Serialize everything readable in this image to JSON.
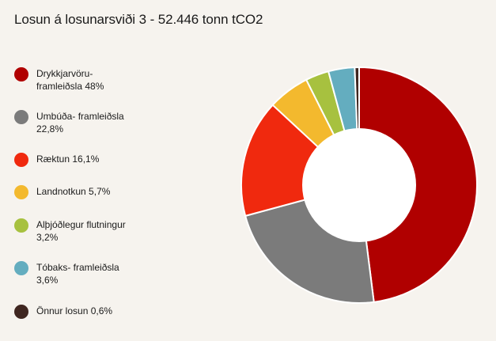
{
  "title": "Losun á losunarsviði 3 - 52.446 tonn tCO2",
  "chart_data": {
    "type": "pie",
    "title": "Losun á losunarsviði 3 - 52.446 tonn tCO2",
    "donut": true,
    "legend_position": "left",
    "slices": [
      {
        "label": "Drykkjarvöru-\nframleiðsla 48%",
        "value": 48.0,
        "color": "#b00000"
      },
      {
        "label": "Umbúða- framleiðsla\n22,8%",
        "value": 22.8,
        "color": "#7b7b7b"
      },
      {
        "label": "Ræktun 16,1%",
        "value": 16.1,
        "color": "#f0290e"
      },
      {
        "label": "Landnotkun 5,7%",
        "value": 5.7,
        "color": "#f3b92e"
      },
      {
        "label": "Alþjóðlegur flutningur\n3,2%",
        "value": 3.2,
        "color": "#a7c13f"
      },
      {
        "label": "Tóbaks- framleiðsla\n3,6%",
        "value": 3.6,
        "color": "#64adbf"
      },
      {
        "label": "Önnur losun 0,6%",
        "value": 0.6,
        "color": "#3f2620"
      }
    ]
  }
}
